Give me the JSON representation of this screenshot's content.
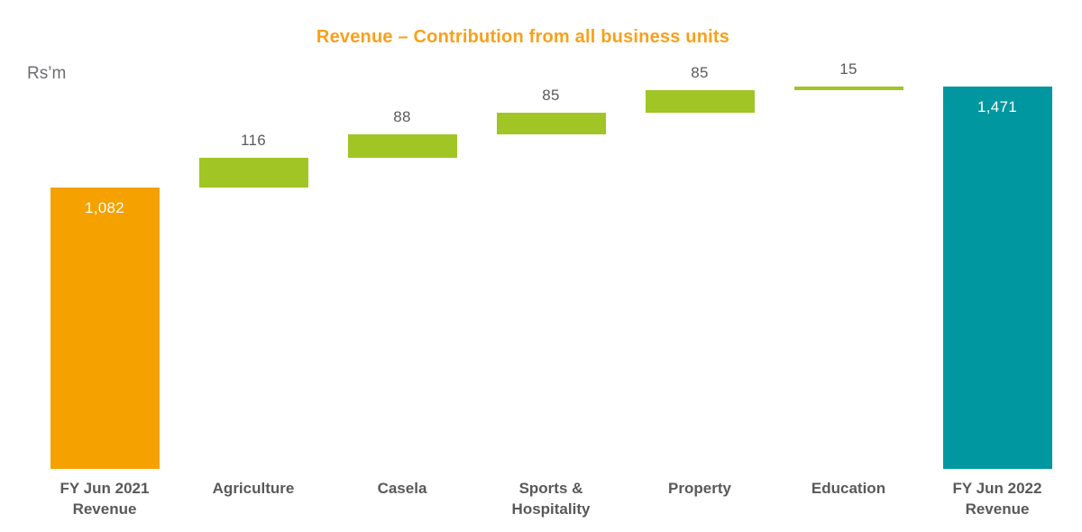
{
  "header": {
    "title_color": "#F9A01B"
  },
  "axis": {
    "unit_label_color": "#6D6E71",
    "category_label_color": "#58595B"
  },
  "chart_data": {
    "type": "bar",
    "subtype": "waterfall",
    "title": "Revenue – Contribution from all business units",
    "ylabel": "Rs’m",
    "xlabel": "",
    "ylim": [
      0,
      1471
    ],
    "grid": false,
    "legend": false,
    "axis_lines": false,
    "categories": [
      "FY Jun 2021\nRevenue",
      "Agriculture",
      "Casela",
      "Sports &\nHospitality",
      "Property",
      "Education",
      "FY Jun 2022\nRevenue"
    ],
    "bars": [
      {
        "category": "FY Jun 2021\nRevenue",
        "value": 1082,
        "display": "1,082",
        "kind": "total",
        "color": "#F5A100",
        "value_label_position": "inside-top",
        "value_label_color": "#FFFFFF"
      },
      {
        "category": "Agriculture",
        "value": 116,
        "display": "116",
        "kind": "increase",
        "color": "#A0C524",
        "value_label_position": "above",
        "value_label_color": "#595A5C"
      },
      {
        "category": "Casela",
        "value": 88,
        "display": "88",
        "kind": "increase",
        "color": "#A0C524",
        "value_label_position": "above",
        "value_label_color": "#595A5C"
      },
      {
        "category": "Sports &\nHospitality",
        "value": 85,
        "display": "85",
        "kind": "increase",
        "color": "#A0C524",
        "value_label_position": "above",
        "value_label_color": "#595A5C"
      },
      {
        "category": "Property",
        "value": 85,
        "display": "85",
        "kind": "increase",
        "color": "#A0C524",
        "value_label_position": "above",
        "value_label_color": "#595A5C"
      },
      {
        "category": "Education",
        "value": 15,
        "display": "15",
        "kind": "increase",
        "color": "#A0C524",
        "value_label_position": "above",
        "value_label_color": "#595A5C"
      },
      {
        "category": "FY Jun 2022\nRevenue",
        "value": 1471,
        "display": "1,471",
        "kind": "total",
        "color": "#0097A0",
        "value_label_position": "inside-top",
        "value_label_color": "#FFFFFF"
      }
    ]
  }
}
